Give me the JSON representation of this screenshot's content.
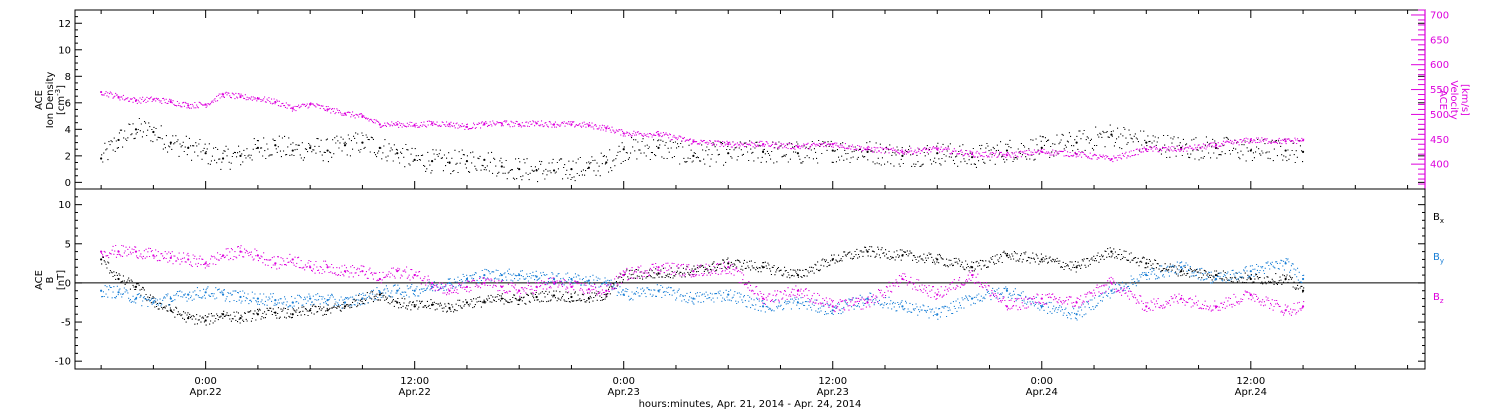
{
  "chart_data": [
    {
      "type": "scatter",
      "panel": "top",
      "ylabel_left": [
        "ACE",
        "Ion Density",
        "[cm",
        "-3",
        "]"
      ],
      "ylabel_right": [
        "ACE",
        "Velocity",
        "[km/s]"
      ],
      "ylim_left": [
        -0.5,
        13
      ],
      "ylim_right": [
        350,
        710
      ],
      "yticks_left": [
        "0",
        "2",
        "4",
        "6",
        "8",
        "10",
        "12"
      ],
      "yticks_right": [
        "400",
        "450",
        "500",
        "550",
        "600",
        "650",
        "700"
      ],
      "right_axis_color": "#dd00dd",
      "grid": false,
      "series": [
        {
          "name": "Ion Density",
          "axis": "left",
          "color": "#000000",
          "x": [
            -6,
            -5,
            -4,
            -3,
            -2,
            -1,
            0,
            1,
            2,
            3,
            4,
            5,
            6,
            7,
            8,
            9,
            10,
            11,
            12,
            13,
            14,
            15,
            16,
            17,
            18,
            19,
            20,
            21,
            22,
            23,
            24,
            26,
            28,
            30,
            32,
            34,
            36,
            38,
            40,
            42,
            44,
            46,
            48,
            50,
            52,
            54,
            56,
            58,
            60,
            62,
            63
          ],
          "y": [
            1.8,
            3.2,
            4.0,
            3.8,
            3.0,
            2.6,
            2.2,
            1.8,
            2.0,
            2.6,
            2.8,
            2.4,
            2.6,
            2.4,
            2.8,
            3.0,
            2.6,
            2.2,
            1.7,
            1.6,
            1.5,
            1.6,
            1.7,
            1.2,
            1.0,
            0.9,
            0.9,
            1.0,
            1.1,
            1.5,
            2.5,
            2.6,
            2.0,
            2.2,
            2.3,
            2.2,
            2.4,
            2.3,
            2.0,
            2.2,
            1.9,
            2.4,
            2.6,
            3.0,
            3.6,
            3.0,
            2.6,
            2.6,
            2.4,
            2.4,
            2.3
          ]
        },
        {
          "name": "Velocity",
          "axis": "right",
          "color": "#dd00dd",
          "x": [
            -6,
            -5,
            -4,
            -3,
            -2,
            -1,
            0,
            1,
            2,
            3,
            4,
            5,
            6,
            7,
            8,
            9,
            10,
            11,
            12,
            13,
            14,
            15,
            16,
            17,
            18,
            19,
            20,
            21,
            22,
            23,
            24,
            26,
            28,
            30,
            32,
            34,
            36,
            38,
            40,
            42,
            44,
            46,
            48,
            50,
            52,
            54,
            56,
            58,
            60,
            62,
            63
          ],
          "y": [
            545,
            535,
            528,
            530,
            525,
            518,
            520,
            540,
            535,
            532,
            525,
            512,
            520,
            510,
            502,
            495,
            480,
            480,
            478,
            482,
            480,
            475,
            480,
            482,
            480,
            482,
            480,
            480,
            478,
            472,
            462,
            460,
            445,
            440,
            440,
            435,
            440,
            430,
            425,
            430,
            420,
            418,
            425,
            420,
            410,
            430,
            430,
            438,
            448,
            446,
            448
          ]
        }
      ]
    },
    {
      "type": "scatter",
      "panel": "bottom",
      "ylabel_left": [
        "ACE",
        "B",
        "[nT]"
      ],
      "ylim": [
        -11,
        12
      ],
      "yticks": [
        "-10",
        "-5",
        "0",
        "5",
        "10"
      ],
      "zero_line": true,
      "grid": false,
      "legend_position": "right",
      "series": [
        {
          "name": "B",
          "subscript": "x",
          "color": "#000000",
          "x": [
            -6,
            -5,
            -4,
            -3,
            -2,
            -1,
            0,
            1,
            2,
            3,
            4,
            5,
            6,
            7,
            8,
            9,
            10,
            11,
            12,
            13,
            14,
            15,
            16,
            17,
            18,
            19,
            20,
            21,
            22,
            23,
            24,
            26,
            28,
            30,
            32,
            34,
            36,
            38,
            40,
            42,
            44,
            46,
            48,
            50,
            52,
            54,
            56,
            58,
            60,
            62,
            63
          ],
          "y": [
            3.0,
            0.5,
            -0.5,
            -2.5,
            -3.5,
            -4.5,
            -4.8,
            -4.0,
            -4.5,
            -4.0,
            -3.8,
            -4.0,
            -3.5,
            -3.5,
            -3.0,
            -2.0,
            -1.5,
            -2.5,
            -3.0,
            -2.8,
            -3.2,
            -2.5,
            -2.4,
            -2.0,
            -2.2,
            -1.8,
            -1.6,
            -1.8,
            -2.0,
            -1.5,
            1.0,
            1.2,
            1.5,
            2.5,
            2.0,
            1.0,
            3.0,
            4.0,
            3.5,
            3.0,
            2.0,
            3.5,
            3.0,
            2.0,
            4.0,
            2.5,
            1.5,
            1.0,
            0.5,
            0.5,
            -1.0
          ]
        },
        {
          "name": "B",
          "subscript": "y",
          "color": "#1a7fd6",
          "x": [
            -6,
            -5,
            -4,
            -3,
            -2,
            -1,
            0,
            1,
            2,
            3,
            4,
            5,
            6,
            7,
            8,
            9,
            10,
            11,
            12,
            13,
            14,
            15,
            16,
            17,
            18,
            19,
            20,
            21,
            22,
            23,
            24,
            26,
            28,
            30,
            32,
            34,
            36,
            38,
            40,
            42,
            44,
            46,
            48,
            50,
            52,
            54,
            56,
            58,
            60,
            62,
            63
          ],
          "y": [
            -1.0,
            -1.2,
            -2.0,
            -2.5,
            -2.0,
            -1.5,
            -1.2,
            -1.5,
            -1.8,
            -2.0,
            -2.2,
            -2.5,
            -2.0,
            -2.2,
            -2.5,
            -2.0,
            -1.2,
            -1.0,
            -1.0,
            -0.5,
            0.0,
            0.5,
            1.0,
            1.0,
            1.0,
            0.8,
            0.5,
            0.5,
            0.3,
            0.0,
            -1.5,
            -1.0,
            -2.0,
            -1.5,
            -3.0,
            -2.5,
            -3.5,
            -2.0,
            -3.0,
            -4.0,
            -2.0,
            -1.0,
            -3.0,
            -4.0,
            -1.0,
            1.0,
            2.0,
            0.5,
            1.5,
            2.5,
            0.5
          ]
        },
        {
          "name": "B",
          "subscript": "z",
          "color": "#dd00dd",
          "x": [
            -6,
            -5,
            -4,
            -3,
            -2,
            -1,
            0,
            1,
            2,
            3,
            4,
            5,
            6,
            7,
            8,
            9,
            10,
            11,
            12,
            13,
            14,
            15,
            16,
            17,
            18,
            19,
            20,
            21,
            22,
            23,
            24,
            26,
            28,
            30,
            32,
            34,
            36,
            38,
            40,
            42,
            44,
            46,
            48,
            50,
            52,
            54,
            56,
            58,
            60,
            62,
            63
          ],
          "y": [
            4.0,
            4.0,
            4.0,
            3.5,
            3.2,
            3.0,
            2.5,
            3.5,
            4.0,
            3.5,
            2.5,
            3.0,
            2.0,
            2.0,
            1.5,
            1.5,
            0.5,
            1.5,
            1.0,
            0.0,
            -1.0,
            -0.5,
            0.0,
            -0.5,
            -1.0,
            -0.5,
            0.0,
            -0.5,
            -0.8,
            -1.0,
            1.0,
            2.0,
            1.5,
            2.0,
            -2.0,
            -1.0,
            -3.0,
            -2.5,
            0.5,
            -1.5,
            1.0,
            -3.0,
            -2.0,
            -2.5,
            0.0,
            -3.0,
            -2.0,
            -3.0,
            -1.5,
            -3.5,
            -3.0
          ]
        }
      ]
    }
  ],
  "x_axis": {
    "title": "hours:minutes, Apr. 21, 2014 - Apr. 24, 2014",
    "x_unit": "hours since 00:00 Apr.22",
    "xlim": [
      -7.5,
      70
    ],
    "ticks": [
      {
        "x": 0,
        "time": "0:00",
        "date": "Apr.22"
      },
      {
        "x": 12,
        "time": "12:00",
        "date": "Apr.22"
      },
      {
        "x": 24,
        "time": "0:00",
        "date": "Apr.23"
      },
      {
        "x": 36,
        "time": "12:00",
        "date": "Apr.23"
      },
      {
        "x": 48,
        "time": "0:00",
        "date": "Apr.24"
      },
      {
        "x": 60,
        "time": "12:00",
        "date": "Apr.24"
      }
    ]
  },
  "legend": [
    {
      "label": "B",
      "sub": "x",
      "color": "#000000"
    },
    {
      "label": "B",
      "sub": "y",
      "color": "#1a7fd6"
    },
    {
      "label": "B",
      "sub": "z",
      "color": "#dd00dd"
    }
  ]
}
